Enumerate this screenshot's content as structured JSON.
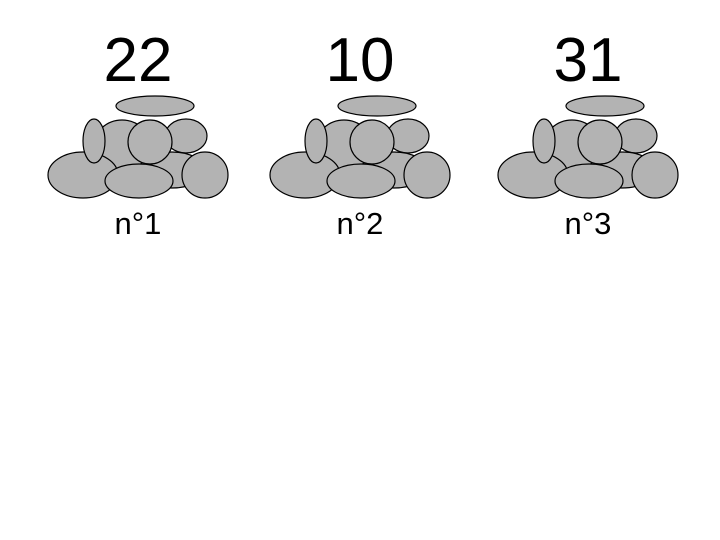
{
  "stone_fill_color": "#b3b3b3",
  "stone_outline_color": "#000000",
  "piles": [
    {
      "count": "22",
      "label": "n°1"
    },
    {
      "count": "10",
      "label": "n°2"
    },
    {
      "count": "31",
      "label": "n°3"
    }
  ]
}
